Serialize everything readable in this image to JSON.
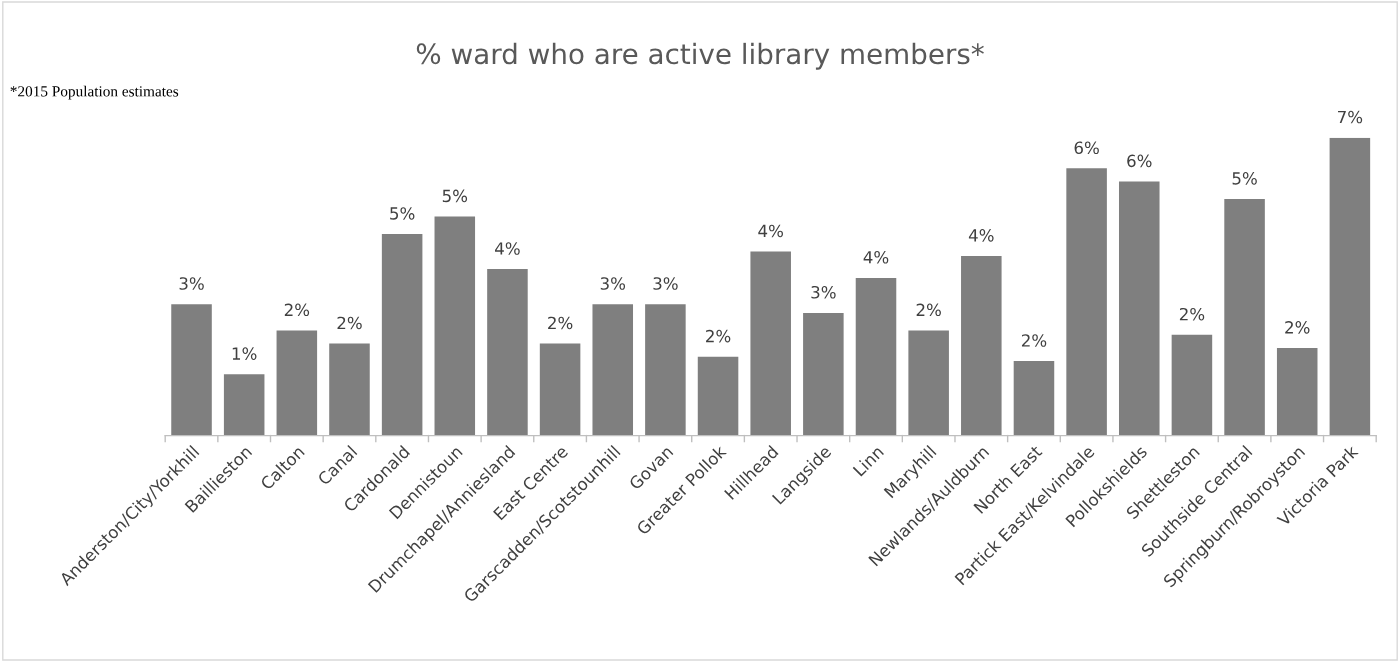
{
  "chart_data": {
    "type": "bar",
    "title": "% ward who are active library members*",
    "annotations": [
      "*2015 Population estimates"
    ],
    "categories": [
      "Anderston/City/Yorkhill",
      "Baillieston",
      "Calton",
      "Canal",
      "Cardonald",
      "Dennistoun",
      "Drumchapel/Anniesland",
      "East Centre",
      "Garscadden/Scotstounhill",
      "Govan",
      "Greater Pollok",
      "Hillhead",
      "Langside",
      "Linn",
      "Maryhill",
      "Newlands/Auldburn",
      "North East",
      "Partick East/Kelvindale",
      "Pollokshields",
      "Shettleston",
      "Southside Central",
      "Springburn/Robroyston",
      "Victoria Park"
    ],
    "values": [
      3.0,
      1.4,
      2.4,
      2.1,
      4.6,
      5.0,
      3.8,
      2.1,
      3.0,
      3.0,
      1.8,
      4.2,
      2.8,
      3.6,
      2.4,
      4.1,
      1.7,
      6.1,
      5.8,
      2.3,
      5.4,
      2.0,
      6.8
    ],
    "value_labels": [
      "3%",
      "1%",
      "2%",
      "2%",
      "5%",
      "5%",
      "4%",
      "2%",
      "3%",
      "3%",
      "2%",
      "4%",
      "3%",
      "4%",
      "2%",
      "4%",
      "2%",
      "6%",
      "6%",
      "2%",
      "5%",
      "2%",
      "7%"
    ],
    "tick_labels": "x",
    "color": "#7f7f7f",
    "grid": false,
    "legend": false
  }
}
